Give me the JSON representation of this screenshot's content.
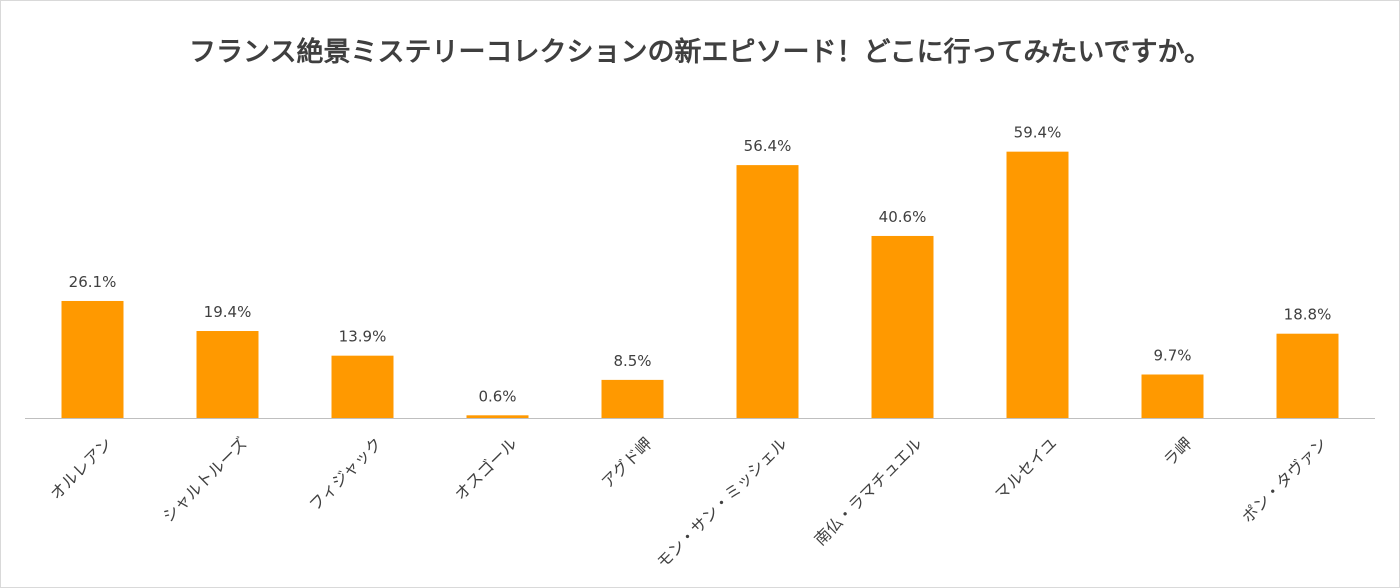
{
  "chart_data": {
    "type": "bar",
    "title": "フランス絶景ミステリーコレクションの新エピソード！どこに行ってみたいですか。",
    "categories": [
      "オルレアン",
      "シャルトルーズ",
      "フィジャック",
      "オスゴール",
      "アグド岬",
      "モン・サン・ミッシェル",
      "南仏・ラマチュエル",
      "マルセイユ",
      "ラ岬",
      "ポン・タヴァン"
    ],
    "values": [
      26.1,
      19.4,
      13.9,
      0.6,
      8.5,
      56.4,
      40.6,
      59.4,
      9.7,
      18.8
    ],
    "value_labels": [
      "26.1%",
      "19.4%",
      "13.9%",
      "0.6%",
      "8.5%",
      "56.4%",
      "40.6%",
      "59.4%",
      "9.7%",
      "18.8%"
    ],
    "bar_color": "#ff9900",
    "axis_color": "#bfbfbf",
    "grid": false,
    "legend": "none",
    "ylim": [
      0,
      62
    ]
  }
}
